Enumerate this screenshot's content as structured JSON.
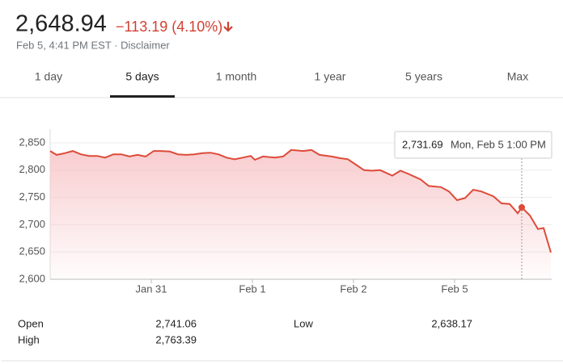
{
  "header": {
    "price": "2,648.94",
    "change": "−113.19 (4.10%)",
    "timestamp": "Feb 5, 4:41 PM EST · Disclaimer"
  },
  "tabs": {
    "items": [
      "1 day",
      "5 days",
      "1 month",
      "1 year",
      "5 years",
      "Max"
    ],
    "active": "5 days"
  },
  "chart_data": {
    "type": "line",
    "color": "#dd4b39",
    "area_color": "#f7c4c7",
    "grid": true,
    "x": [
      0,
      0.8,
      1.8,
      2.8,
      3.8,
      4.8,
      5.8,
      6.8,
      7.8,
      8.8,
      9.8,
      10.8,
      11.8,
      12.8,
      13.8,
      14.8,
      15.8,
      16.8,
      17.8,
      18.8,
      19.8,
      20.8,
      21.8,
      22.8,
      23.8,
      24.8,
      25.3,
      26.3,
      27.8,
      28.8,
      29.8,
      31.3,
      32.3,
      33.3,
      34.8,
      35.8,
      36.8,
      37.8,
      38.8,
      39.8,
      40.8,
      42.3,
      43.3,
      44.3,
      45.8,
      46.8,
      48.3,
      49.3,
      50.3,
      51.3,
      52.3,
      53.3,
      54.8,
      55.8,
      56.8,
      57.8,
      58.3,
      59.3,
      60.3,
      61,
      61.9
    ],
    "values": [
      2835,
      2828,
      2831,
      2835,
      2829,
      2826,
      2826,
      2823,
      2829,
      2829,
      2825,
      2828,
      2825,
      2835,
      2835,
      2834,
      2829,
      2828,
      2829,
      2831,
      2832,
      2829,
      2823,
      2820,
      2823,
      2826,
      2819,
      2825,
      2823,
      2825,
      2837,
      2835,
      2837,
      2828,
      2825,
      2822,
      2820,
      2810,
      2800,
      2799,
      2800,
      2790,
      2799,
      2793,
      2783,
      2771,
      2769,
      2761,
      2745,
      2749,
      2764,
      2761,
      2752,
      2739,
      2738,
      2721,
      2731.69,
      2717,
      2692,
      2694,
      2648.94
    ],
    "xlim": [
      0,
      62
    ],
    "xticks": [
      {
        "value": 12.5,
        "label": "Jan 31"
      },
      {
        "value": 25,
        "label": "Feb 1"
      },
      {
        "value": 37.5,
        "label": "Feb 2"
      },
      {
        "value": 50,
        "label": "Feb 5"
      }
    ],
    "ylim": [
      2600,
      2850
    ],
    "yticks": [
      {
        "value": 2600,
        "label": "2,600"
      },
      {
        "value": 2650,
        "label": "2,650"
      },
      {
        "value": 2700,
        "label": "2,700"
      },
      {
        "value": 2750,
        "label": "2,750"
      },
      {
        "value": 2800,
        "label": "2,800"
      },
      {
        "value": 2850,
        "label": "2,850"
      }
    ],
    "tooltip": {
      "x": 58.3,
      "value": 2731.69,
      "label": "2,731.69",
      "time": "Mon, Feb 5 1:00 PM"
    }
  },
  "stats": {
    "rows": [
      [
        "Open",
        "2,741.06",
        "Low",
        "2,638.17"
      ],
      [
        "High",
        "2,763.39"
      ]
    ]
  }
}
